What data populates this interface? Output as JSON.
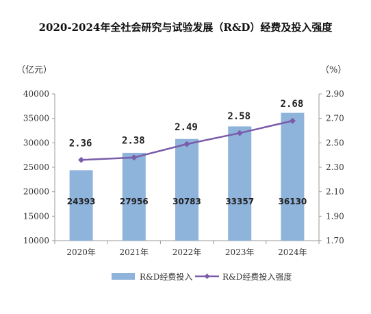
{
  "chart_data": {
    "type": "bar",
    "title": "2020-2024年全社会研究与试验发展（R&D）经费及投入强度",
    "left_unit": "（亿元）",
    "right_unit": "（%）",
    "categories": [
      "2020年",
      "2021年",
      "2022年",
      "2023年",
      "2024年"
    ],
    "series": [
      {
        "name": "R&D经费投入",
        "type": "bar",
        "axis": "left",
        "color": "#8eb4dc",
        "values": [
          24393,
          27956,
          30783,
          33357,
          36130
        ]
      },
      {
        "name": "R&D经费投入强度",
        "type": "line",
        "axis": "right",
        "color": "#7b5ca8",
        "values": [
          2.36,
          2.38,
          2.49,
          2.58,
          2.68
        ]
      }
    ],
    "bar_labels": [
      "24393",
      "27956",
      "30783",
      "33357",
      "36130"
    ],
    "line_labels": [
      "2.36",
      "2.38",
      "2.49",
      "2.58",
      "2.68"
    ],
    "ylim_left": [
      10000,
      40000
    ],
    "ylim_right": [
      1.7,
      2.9
    ],
    "yticks_left": [
      "10000",
      "15000",
      "20000",
      "25000",
      "30000",
      "35000",
      "40000"
    ],
    "yticks_right": [
      "1.70",
      "1.90",
      "2.10",
      "2.30",
      "2.50",
      "2.70",
      "2.90"
    ],
    "grid": false,
    "legend_position": "bottom"
  }
}
